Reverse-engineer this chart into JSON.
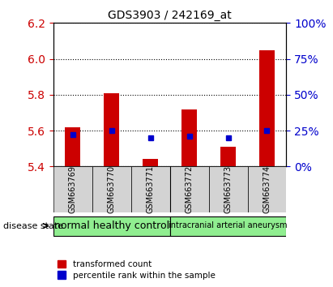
{
  "title": "GDS3903 / 242169_at",
  "samples": [
    "GSM663769",
    "GSM663770",
    "GSM663771",
    "GSM663772",
    "GSM663773",
    "GSM663774"
  ],
  "transformed_counts": [
    5.62,
    5.81,
    5.44,
    5.72,
    5.51,
    6.05
  ],
  "percentile_ranks": [
    22,
    25,
    20,
    21,
    20,
    25
  ],
  "y_min": 5.4,
  "y_max": 6.2,
  "y_ticks": [
    5.4,
    5.6,
    5.8,
    6.0,
    6.2
  ],
  "right_y_ticks": [
    0,
    25,
    50,
    75,
    100
  ],
  "right_y_tick_labels": [
    "0%",
    "25%",
    "50%",
    "75%",
    "100%"
  ],
  "bar_color": "#cc0000",
  "dot_color": "#0000cc",
  "bar_width": 0.4,
  "groups": [
    {
      "label": "normal healthy control",
      "samples": [
        "GSM663769",
        "GSM663770",
        "GSM663771"
      ],
      "color": "#90ee90"
    },
    {
      "label": "intracranial arterial aneurysm",
      "samples": [
        "GSM663772",
        "GSM663773",
        "GSM663774"
      ],
      "color": "#90ee90"
    }
  ],
  "disease_state_label": "disease state",
  "legend_items": [
    {
      "color": "#cc0000",
      "label": "transformed count"
    },
    {
      "color": "#0000cc",
      "label": "percentile rank within the sample"
    }
  ],
  "xlabel_color": "#cc0000",
  "ylabel_color": "#cc0000",
  "right_ylabel_color": "#0000cc",
  "grid_style": "dotted"
}
